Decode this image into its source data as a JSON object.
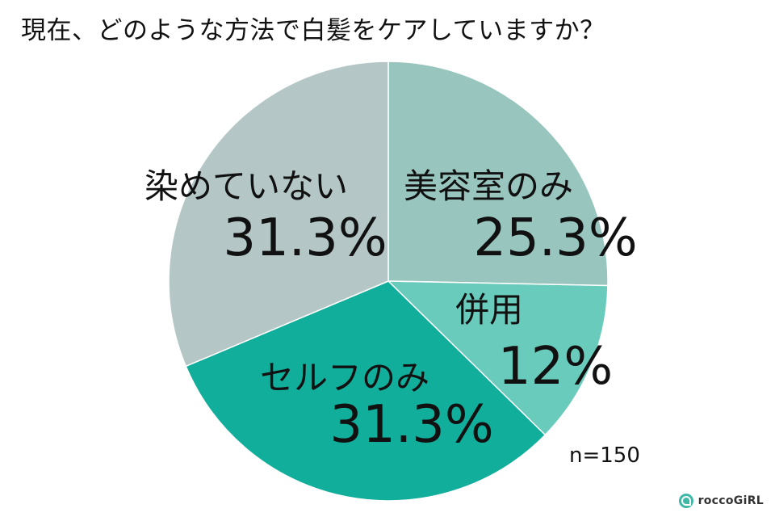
{
  "title": "現在、どのような方法で白髪をケアしていますか？",
  "note": "n=150",
  "logo": {
    "text": "roccoGiRL",
    "icon": "rocco-logo-icon"
  },
  "chart_data": {
    "type": "pie",
    "title": "現在、どのような方法で白髪をケアしていますか？",
    "start": "12-o'clock",
    "direction": "clockwise",
    "slices": [
      {
        "label": "美容室のみ",
        "value_text": "25.3%",
        "value": 25.3,
        "color": "#98c6be"
      },
      {
        "label": "併用",
        "value_text": "12%",
        "value": 12,
        "color": "#69cbbb"
      },
      {
        "label": "セルフのみ",
        "value_text": "31.3%",
        "value": 31.3,
        "color": "#11ae9b"
      },
      {
        "label": "染めていない",
        "value_text": "31.3%",
        "value": 31.3,
        "color": "#b4c7c6"
      }
    ]
  }
}
